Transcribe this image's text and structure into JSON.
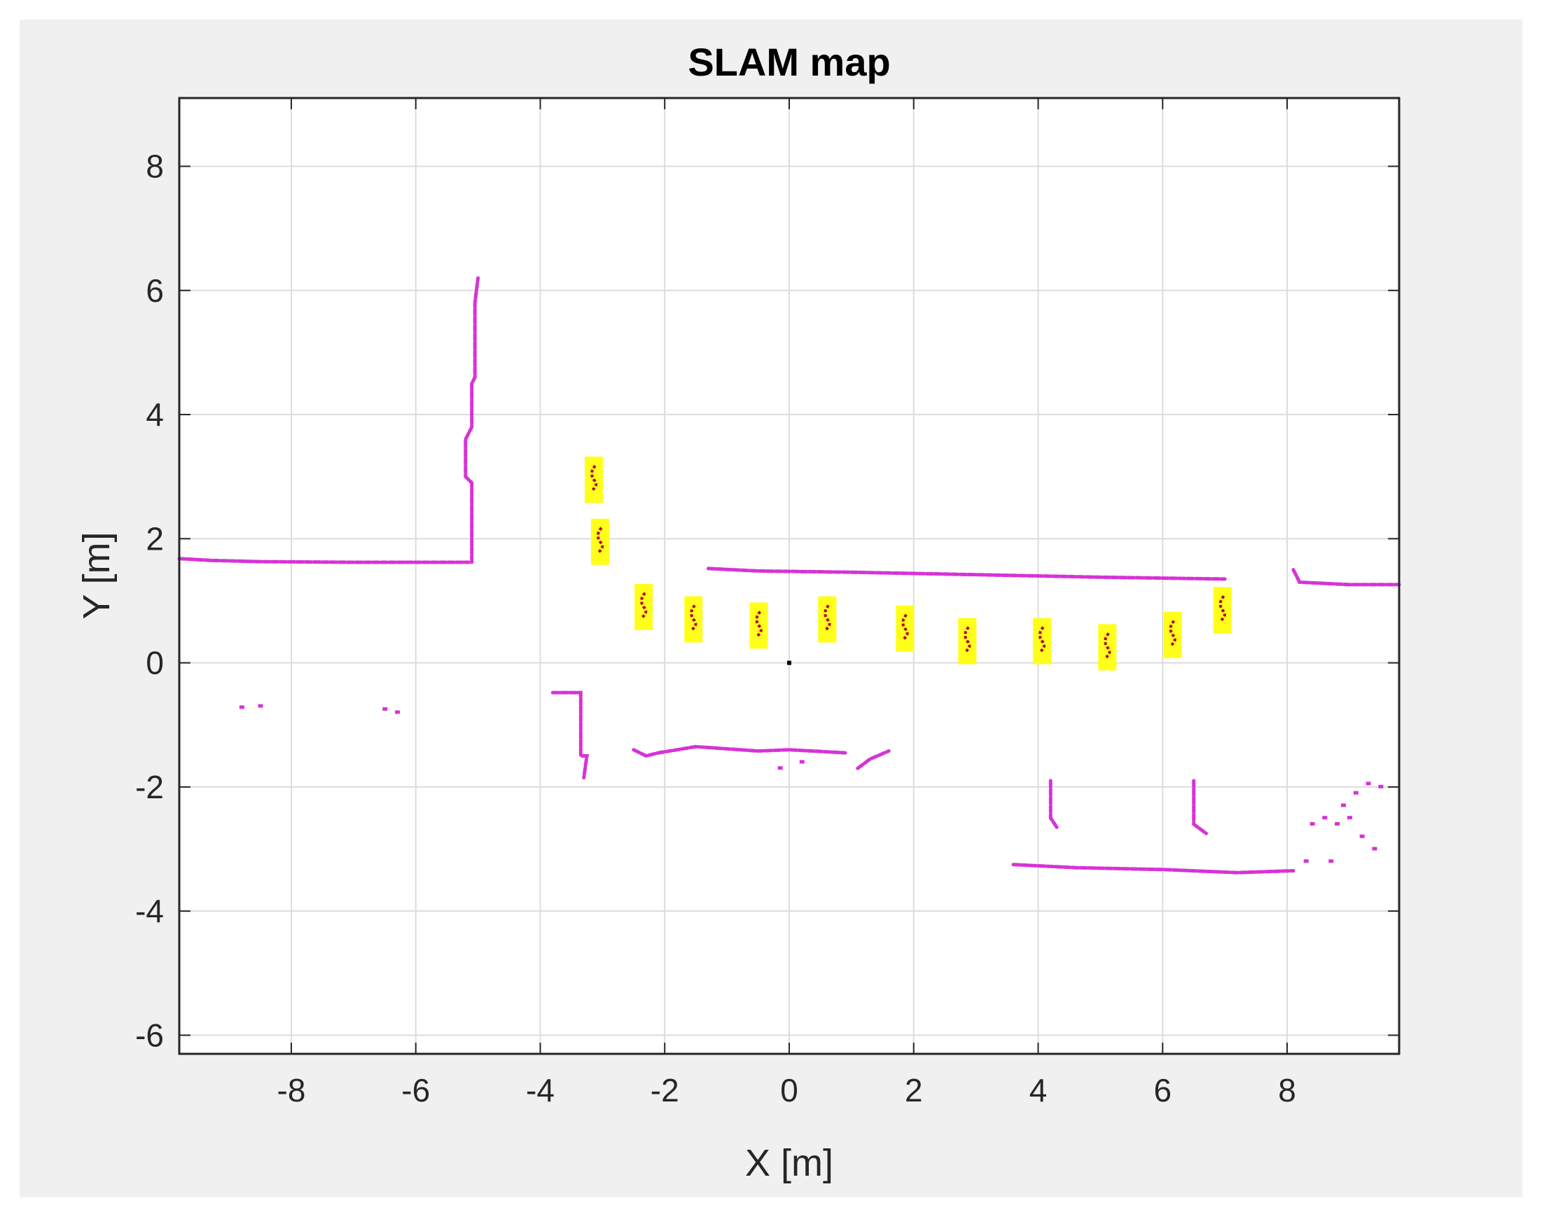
{
  "chart_data": {
    "type": "scatter",
    "title": "SLAM map",
    "xlabel": "X [m]",
    "ylabel": "Y [m]",
    "xlim": [
      -9.8,
      9.8
    ],
    "ylim": [
      -6.3,
      9.1
    ],
    "xticks": [
      -8,
      -6,
      -4,
      -2,
      0,
      2,
      4,
      6,
      8
    ],
    "yticks": [
      -6,
      -4,
      -2,
      0,
      2,
      4,
      6,
      8
    ],
    "grid": true,
    "colors": {
      "map": "#d633d6",
      "landmark_fill": "#ffff1a",
      "landmark_points": "#b3002d",
      "origin": "#000000",
      "grid": "#dcdcdc"
    },
    "series": [
      {
        "kind": "map",
        "segments": [
          [
            [
              -9.8,
              1.68
            ],
            [
              -9.3,
              1.65
            ],
            [
              -8.5,
              1.63
            ],
            [
              -7.0,
              1.62
            ],
            [
              -6.0,
              1.62
            ],
            [
              -5.15,
              1.62
            ]
          ],
          [
            [
              -5.1,
              1.62
            ],
            [
              -5.1,
              2.9
            ],
            [
              -5.2,
              3.0
            ],
            [
              -5.2,
              3.6
            ],
            [
              -5.1,
              3.8
            ],
            [
              -5.1,
              4.5
            ],
            [
              -5.05,
              4.6
            ],
            [
              -5.05,
              5.8
            ],
            [
              -5.0,
              6.2
            ]
          ],
          [
            [
              -1.3,
              1.52
            ],
            [
              -0.5,
              1.48
            ],
            [
              1.0,
              1.46
            ],
            [
              3.0,
              1.42
            ],
            [
              5.0,
              1.38
            ],
            [
              7.0,
              1.35
            ]
          ],
          [
            [
              8.1,
              1.5
            ],
            [
              8.2,
              1.3
            ],
            [
              9.0,
              1.26
            ],
            [
              9.8,
              1.26
            ]
          ],
          [
            [
              -3.8,
              -0.48
            ],
            [
              -3.35,
              -0.48
            ],
            [
              -3.35,
              -1.5
            ],
            [
              -3.25,
              -1.5
            ],
            [
              -3.3,
              -1.85
            ]
          ],
          [
            [
              -2.5,
              -1.4
            ],
            [
              -2.3,
              -1.5
            ],
            [
              -2.1,
              -1.45
            ],
            [
              -1.5,
              -1.35
            ],
            [
              -0.5,
              -1.42
            ],
            [
              0.0,
              -1.4
            ],
            [
              0.9,
              -1.45
            ]
          ],
          [
            [
              1.1,
              -1.7
            ],
            [
              1.3,
              -1.55
            ],
            [
              1.6,
              -1.42
            ]
          ],
          [
            [
              3.6,
              -3.25
            ],
            [
              4.6,
              -3.3
            ],
            [
              6.0,
              -3.33
            ],
            [
              7.2,
              -3.38
            ],
            [
              8.1,
              -3.35
            ]
          ],
          [
            [
              4.2,
              -1.9
            ],
            [
              4.2,
              -2.5
            ],
            [
              4.3,
              -2.65
            ]
          ],
          [
            [
              6.5,
              -1.9
            ],
            [
              6.5,
              -2.6
            ],
            [
              6.7,
              -2.75
            ]
          ]
        ],
        "points": [
          [
            -8.8,
            -0.72
          ],
          [
            -8.5,
            -0.7
          ],
          [
            -6.5,
            -0.75
          ],
          [
            -6.3,
            -0.8
          ],
          [
            -0.15,
            -1.7
          ],
          [
            0.2,
            -1.6
          ],
          [
            8.9,
            -2.3
          ],
          [
            9.1,
            -2.1
          ],
          [
            9.3,
            -1.95
          ],
          [
            8.8,
            -2.6
          ],
          [
            9.2,
            -2.8
          ],
          [
            9.4,
            -3.0
          ],
          [
            8.4,
            -2.6
          ],
          [
            8.6,
            -2.5
          ],
          [
            8.3,
            -3.2
          ],
          [
            8.7,
            -3.2
          ],
          [
            9.0,
            -2.5
          ],
          [
            9.5,
            -2.0
          ]
        ]
      },
      {
        "kind": "landmarks",
        "items": [
          [
            -3.15,
            2.95
          ],
          [
            -3.05,
            1.95
          ],
          [
            -2.35,
            0.9
          ],
          [
            -1.55,
            0.7
          ],
          [
            -0.5,
            0.6
          ],
          [
            0.6,
            0.7
          ],
          [
            1.85,
            0.55
          ],
          [
            2.85,
            0.35
          ],
          [
            4.05,
            0.35
          ],
          [
            5.1,
            0.25
          ],
          [
            6.15,
            0.45
          ],
          [
            6.95,
            0.85
          ]
        ]
      },
      {
        "kind": "origin",
        "points": [
          [
            0.0,
            0.0
          ]
        ]
      }
    ]
  }
}
